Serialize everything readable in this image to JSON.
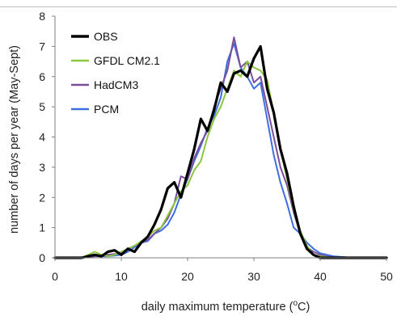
{
  "chart_data": {
    "type": "line",
    "xlabel": "daily maximum temperature (",
    "xlabel_sup": "o",
    "xlabel_tail": "C)",
    "ylabel": "number of days per year (May-Sept)",
    "xlim": [
      0,
      50
    ],
    "ylim": [
      0,
      8
    ],
    "x_ticks": [
      "0",
      "10",
      "20",
      "30",
      "40",
      "50"
    ],
    "y_ticks": [
      "0",
      "1",
      "2",
      "3",
      "4",
      "5",
      "6",
      "7",
      "8"
    ],
    "grid": false,
    "legend_position": "top-left",
    "series": [
      {
        "name": "OBS",
        "color": "#000000",
        "x": [
          0,
          2,
          4,
          5,
          6,
          7,
          8,
          9,
          10,
          11,
          12,
          13,
          14,
          15,
          16,
          17,
          18,
          19,
          20,
          21,
          22,
          23,
          24,
          25,
          26,
          27,
          28,
          29,
          30,
          31,
          32,
          33,
          34,
          35,
          36,
          37,
          38,
          39,
          40,
          42,
          45,
          50
        ],
        "y": [
          0,
          0,
          0,
          0.05,
          0.1,
          0.05,
          0.2,
          0.25,
          0.1,
          0.3,
          0.2,
          0.5,
          0.7,
          1.1,
          1.6,
          2.3,
          2.5,
          2.0,
          2.8,
          3.6,
          4.6,
          4.2,
          4.9,
          5.8,
          5.5,
          6.1,
          6.2,
          6.0,
          6.6,
          7.0,
          5.6,
          4.8,
          3.6,
          2.8,
          1.7,
          0.8,
          0.3,
          0.1,
          0,
          0,
          0,
          0
        ]
      },
      {
        "name": "GFDL CM2.1",
        "color": "#8dc63f",
        "x": [
          0,
          2,
          4,
          6,
          7,
          8,
          9,
          10,
          11,
          12,
          13,
          14,
          15,
          16,
          17,
          18,
          19,
          20,
          21,
          22,
          23,
          24,
          25,
          26,
          27,
          28,
          29,
          30,
          31,
          32,
          33,
          34,
          35,
          36,
          37,
          38,
          39,
          40,
          42,
          45,
          50
        ],
        "y": [
          0,
          0,
          0,
          0.2,
          0.1,
          0.05,
          0.1,
          0.2,
          0.3,
          0.4,
          0.55,
          0.7,
          0.9,
          1.0,
          1.4,
          1.8,
          2.2,
          2.4,
          2.9,
          3.2,
          4.0,
          4.6,
          5.0,
          5.6,
          6.2,
          6.0,
          6.5,
          6.3,
          6.2,
          5.9,
          4.8,
          3.6,
          2.6,
          1.6,
          0.9,
          0.4,
          0.1,
          0.05,
          0,
          0,
          0
        ]
      },
      {
        "name": "HadCM3",
        "color": "#7a4e9c",
        "x": [
          0,
          2,
          4,
          6,
          8,
          10,
          11,
          12,
          13,
          14,
          15,
          16,
          17,
          18,
          19,
          20,
          21,
          22,
          23,
          24,
          25,
          26,
          27,
          28,
          29,
          30,
          31,
          32,
          33,
          34,
          35,
          36,
          37,
          38,
          39,
          40,
          42,
          45,
          50
        ],
        "y": [
          0,
          0,
          0,
          0.05,
          0.1,
          0.15,
          0.3,
          0.4,
          0.5,
          0.6,
          0.8,
          1.0,
          1.3,
          1.8,
          2.7,
          2.6,
          3.3,
          3.8,
          4.2,
          5.0,
          5.6,
          6.2,
          7.3,
          6.3,
          6.5,
          5.8,
          6.0,
          5.0,
          4.0,
          3.0,
          2.4,
          1.5,
          0.8,
          0.35,
          0.2,
          0.1,
          0,
          0,
          0
        ]
      },
      {
        "name": "PCM",
        "color": "#3d6fe0",
        "x": [
          0,
          2,
          4,
          6,
          8,
          10,
          11,
          12,
          13,
          14,
          15,
          16,
          17,
          18,
          19,
          20,
          21,
          22,
          23,
          24,
          25,
          26,
          27,
          28,
          29,
          30,
          31,
          32,
          33,
          34,
          35,
          36,
          37,
          38,
          39,
          40,
          42,
          45,
          50
        ],
        "y": [
          0,
          0,
          0,
          0.05,
          0.05,
          0.1,
          0.2,
          0.35,
          0.5,
          0.55,
          0.8,
          0.9,
          1.1,
          1.5,
          2.1,
          2.6,
          3.2,
          3.7,
          4.3,
          4.7,
          5.3,
          6.5,
          7.1,
          6.3,
          6.0,
          5.6,
          5.8,
          4.6,
          3.4,
          2.5,
          1.8,
          1.0,
          0.8,
          0.5,
          0.3,
          0.15,
          0.05,
          0,
          0
        ]
      }
    ]
  }
}
